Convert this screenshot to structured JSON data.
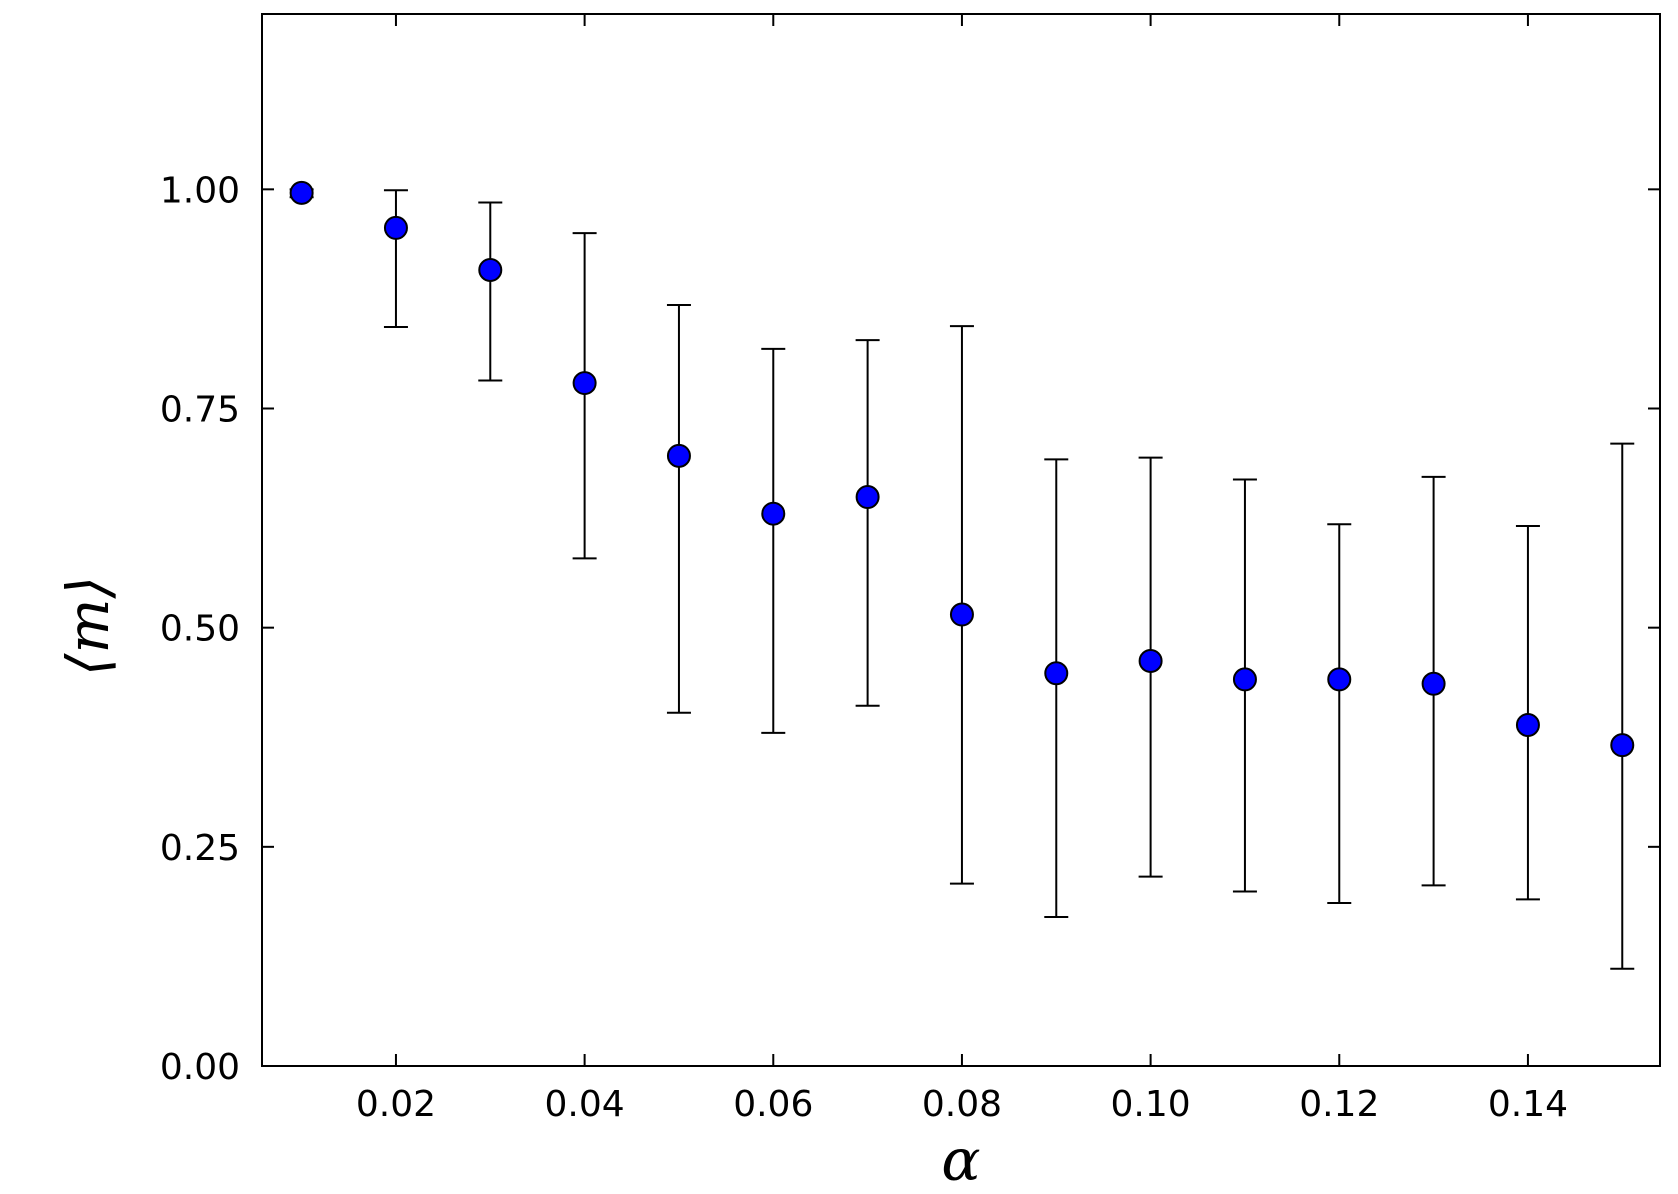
{
  "chart_data": {
    "type": "scatter",
    "title": "",
    "xlabel": "α",
    "ylabel": "⟨m⟩",
    "xlim": [
      0.0058,
      0.154
    ],
    "ylim": [
      0.0,
      1.2
    ],
    "xticks": [
      0.02,
      0.04,
      0.06,
      0.08,
      0.1,
      0.12,
      0.14
    ],
    "xtick_labels": [
      "0.02",
      "0.04",
      "0.06",
      "0.08",
      "0.10",
      "0.12",
      "0.14"
    ],
    "yticks": [
      0.0,
      0.25,
      0.5,
      0.75,
      1.0
    ],
    "ytick_labels": [
      "0.00",
      "0.25",
      "0.50",
      "0.75",
      "1.00"
    ],
    "grid": false,
    "marker_color": "#0000ff",
    "series": [
      {
        "x": [
          0.01,
          0.02,
          0.03,
          0.04,
          0.05,
          0.06,
          0.07,
          0.08,
          0.09,
          0.1,
          0.11,
          0.12,
          0.13,
          0.14,
          0.15
        ],
        "y": [
          0.996,
          0.956,
          0.908,
          0.779,
          0.696,
          0.63,
          0.649,
          0.515,
          0.448,
          0.462,
          0.441,
          0.441,
          0.436,
          0.389,
          0.366
        ],
        "err_lo": [
          0.991,
          0.843,
          0.782,
          0.579,
          0.403,
          0.38,
          0.411,
          0.208,
          0.17,
          0.216,
          0.199,
          0.186,
          0.206,
          0.19,
          0.111
        ],
        "err_hi": [
          1.0,
          0.999,
          0.985,
          0.95,
          0.868,
          0.818,
          0.828,
          0.844,
          0.692,
          0.694,
          0.669,
          0.618,
          0.672,
          0.616,
          0.71
        ]
      }
    ]
  }
}
